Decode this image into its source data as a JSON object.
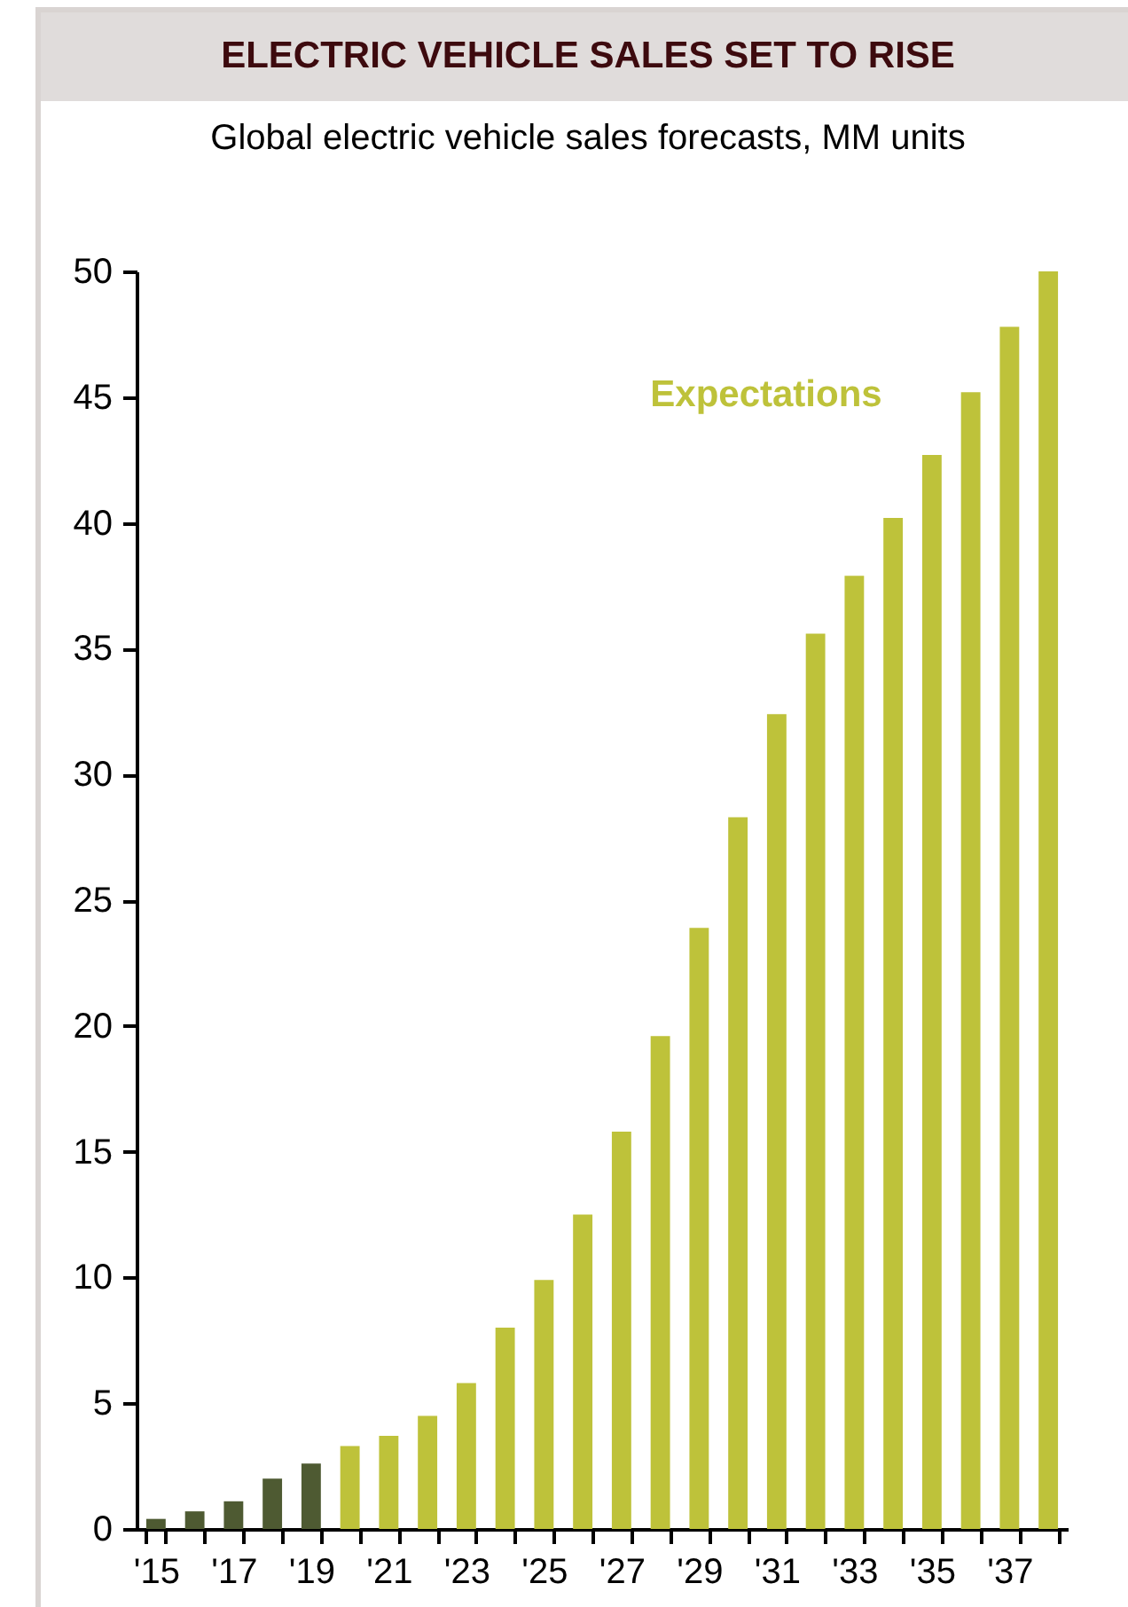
{
  "chart_data": {
    "type": "bar",
    "title": "ELECTRIC VEHICLE SALES SET TO RISE",
    "subtitle": "Global electric vehicle sales forecasts, MM units",
    "categories": [
      "'15",
      null,
      "'17",
      null,
      "'19",
      null,
      "'21",
      null,
      "'23",
      null,
      "'25",
      null,
      "'27",
      null,
      "'29",
      null,
      "'31",
      null,
      "'33",
      null,
      "'35",
      null,
      "'37",
      null
    ],
    "series": [
      {
        "color": "#4e5a32",
        "values": [
          0.4,
          0.7,
          1.1,
          2.0,
          2.6,
          null,
          null,
          null,
          null,
          null,
          null,
          null,
          null,
          null,
          null,
          null,
          null,
          null,
          null,
          null,
          null,
          null,
          null,
          null
        ]
      },
      {
        "name": "Expectations",
        "color": "#bec23a",
        "values": [
          null,
          null,
          null,
          null,
          null,
          3.3,
          3.7,
          4.5,
          5.8,
          8.0,
          9.9,
          12.5,
          15.8,
          19.6,
          23.9,
          28.3,
          32.4,
          35.6,
          37.9,
          40.2,
          42.7,
          45.2,
          47.8,
          50.0
        ]
      }
    ],
    "ylim": [
      0,
      50
    ],
    "yticks": [
      0,
      5,
      10,
      15,
      20,
      25,
      30,
      35,
      40,
      45,
      50
    ],
    "grid": false
  }
}
